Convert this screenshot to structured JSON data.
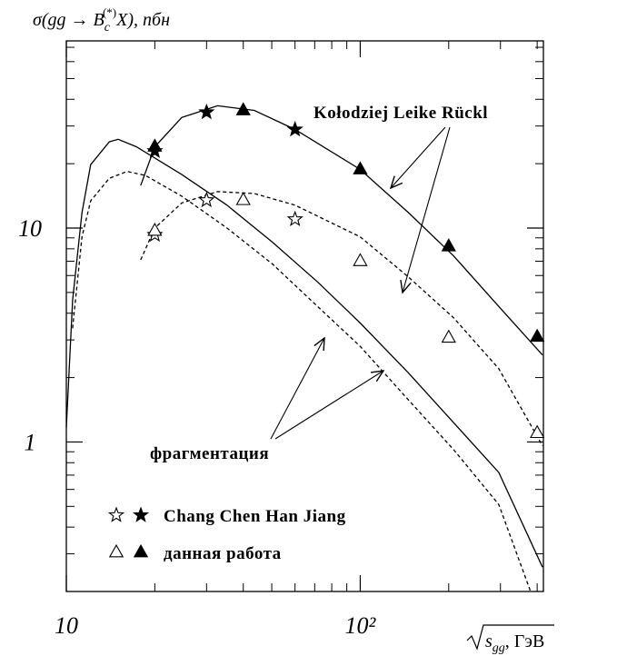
{
  "chart_data": {
    "type": "scatter",
    "log_x": true,
    "log_y": true,
    "ylabel": [
      "σ(gg → B",
      "c",
      "(*)",
      "X), пбн"
    ],
    "xlabel": [
      "s",
      "gg",
      ", ГэВ"
    ],
    "xlim": [
      10,
      420
    ],
    "ylim": [
      0.2,
      75
    ],
    "xticks": [
      10,
      {
        "value": 100,
        "label": "10²"
      }
    ],
    "yticks": [
      1,
      10
    ],
    "xticks_minor": [
      20,
      30,
      40,
      50,
      60,
      70,
      80,
      90,
      200,
      300,
      400
    ],
    "yticks_minor": [
      0.2,
      0.3,
      0.4,
      0.5,
      0.6,
      0.7,
      0.8,
      0.9,
      2,
      3,
      4,
      5,
      6,
      7,
      8,
      9,
      20,
      30,
      40,
      50,
      60,
      70
    ],
    "color": "#000000",
    "series": [
      {
        "name": "Chang Chen Han Jiang",
        "marker": "star",
        "x": [
          20,
          30,
          60
        ],
        "open": [
          9.3,
          13.5,
          11
        ],
        "filled": [
          22.9,
          34.8,
          28.9
        ]
      },
      {
        "name": "данная работа",
        "marker": "triangle",
        "x": [
          20,
          40,
          100,
          200,
          400
        ],
        "open": [
          9.7,
          13.5,
          7,
          3.07,
          1.1
        ],
        "filled": [
          24,
          35.5,
          18.8,
          8.2,
          3.1
        ]
      }
    ],
    "curves": [
      {
        "style": "solid",
        "x": [
          17.9,
          20,
          24.7,
          32.7,
          43.6,
          60,
          100,
          146,
          208,
          296,
          417
        ],
        "values": [
          15.8,
          24,
          32.9,
          37.3,
          35.5,
          28.9,
          18.8,
          11.8,
          7.4,
          4.3,
          2.55
        ]
      },
      {
        "style": "dashed",
        "x": [
          17.9,
          20,
          24.7,
          32.7,
          43.6,
          60,
          100,
          146,
          208,
          296,
          417
        ],
        "values": [
          7.1,
          10,
          13.1,
          14.8,
          14.5,
          12.8,
          9.1,
          5.9,
          3.8,
          2.2,
          0.96
        ]
      },
      {
        "style": "solid",
        "x": [
          10,
          10.5,
          11.3,
          12.1,
          14,
          15,
          17.3,
          24.7,
          35.2,
          50.2,
          71.6,
          100,
          146,
          208,
          296,
          417
        ],
        "values": [
          1.17,
          4.6,
          11.8,
          19.8,
          25.3,
          26,
          24,
          17.8,
          12.8,
          8.6,
          5.6,
          3.6,
          2.1,
          1.23,
          0.72,
          0.26
        ]
      },
      {
        "style": "dashed",
        "x": [
          10.5,
          11.3,
          12.1,
          14,
          16.1,
          18.6,
          24.7,
          35.2,
          50.2,
          71.6,
          100,
          146,
          208,
          296,
          380
        ],
        "values": [
          3.4,
          9.1,
          13.4,
          17.1,
          18.4,
          17.6,
          14.1,
          10,
          6.8,
          4.3,
          2.8,
          1.57,
          0.92,
          0.51,
          0.2
        ]
      }
    ],
    "annotations": [
      "Kołodziej Leike Rückl",
      "фрагментация"
    ]
  }
}
